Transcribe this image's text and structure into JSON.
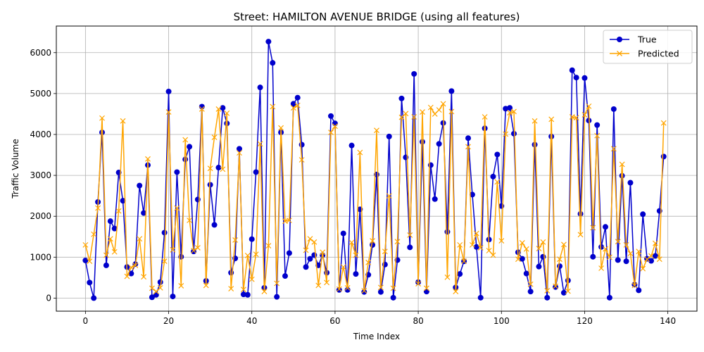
{
  "chart_data": {
    "type": "line",
    "title": "Street: HAMILTON AVENUE BRIDGE (using all features)",
    "xlabel": "Time Index",
    "ylabel": "Traffic Volume",
    "xlim": [
      -7,
      147
    ],
    "ylim": [
      -320,
      6650
    ],
    "xticks": [
      0,
      20,
      40,
      60,
      80,
      100,
      120,
      140
    ],
    "yticks": [
      0,
      1000,
      2000,
      3000,
      4000,
      5000,
      6000
    ],
    "grid": true,
    "legend_position": "top-right",
    "series": [
      {
        "name": "True",
        "color": "#0000cc",
        "marker": "circle",
        "values": [
          920,
          380,
          0,
          2350,
          4050,
          800,
          1880,
          1700,
          3070,
          2380,
          760,
          600,
          830,
          2750,
          2080,
          3250,
          20,
          80,
          390,
          1600,
          5050,
          40,
          3080,
          1010,
          3390,
          3700,
          1140,
          2410,
          4680,
          420,
          2770,
          1790,
          3190,
          4650,
          4270,
          620,
          970,
          3650,
          90,
          80,
          1440,
          3080,
          5150,
          250,
          6270,
          5750,
          30,
          4050,
          540,
          1100,
          4750,
          4900,
          3750,
          760,
          960,
          1050,
          800,
          1050,
          620,
          4450,
          4270,
          200,
          1580,
          200,
          3730,
          590,
          2170,
          150,
          570,
          1300,
          3020,
          150,
          820,
          3950,
          10,
          930,
          4880,
          3440,
          1240,
          5480,
          390,
          3820,
          160,
          3250,
          2420,
          3770,
          4280,
          1620,
          5060,
          260,
          590,
          900,
          3910,
          2530,
          1250,
          10,
          4150,
          1430,
          2970,
          3510,
          2250,
          4630,
          4650,
          4020,
          1120,
          960,
          600,
          160,
          3750,
          770,
          1010,
          10,
          3950,
          270,
          780,
          130,
          430,
          5570,
          5390,
          2060,
          5380,
          4340,
          1010,
          4230,
          1250,
          1740,
          10,
          4620,
          930,
          2990,
          900,
          2820,
          330,
          190,
          2050,
          960,
          910,
          1030,
          2130,
          3460
        ]
      },
      {
        "name": "Predicted",
        "color": "#ffa500",
        "marker": "x",
        "values": [
          1300,
          900,
          1560,
          2200,
          4400,
          1050,
          1450,
          1130,
          2130,
          4330,
          530,
          750,
          800,
          1450,
          520,
          3400,
          240,
          160,
          250,
          900,
          4550,
          1180,
          2200,
          300,
          3870,
          1900,
          1160,
          1230,
          4620,
          310,
          3170,
          3930,
          4620,
          3150,
          4520,
          230,
          1420,
          3550,
          210,
          1040,
          460,
          1070,
          3770,
          160,
          1280,
          4680,
          360,
          4160,
          1880,
          1900,
          4650,
          4710,
          3380,
          1170,
          1450,
          1370,
          310,
          1120,
          380,
          4050,
          4200,
          220,
          760,
          250,
          1360,
          1050,
          3560,
          180,
          870,
          1400,
          4100,
          260,
          1140,
          2500,
          240,
          1380,
          4420,
          4510,
          1540,
          4430,
          350,
          4550,
          240,
          4660,
          4500,
          4600,
          4750,
          510,
          4560,
          160,
          1300,
          900,
          3700,
          1300,
          1580,
          1230,
          4430,
          1160,
          1050,
          2840,
          1400,
          4010,
          4530,
          4560,
          950,
          1350,
          1200,
          340,
          4330,
          1210,
          1370,
          180,
          4370,
          290,
          950,
          1310,
          170,
          4430,
          4410,
          1550,
          4480,
          4690,
          1720,
          3970,
          730,
          1200,
          1000,
          3650,
          1380,
          3270,
          1300,
          1090,
          310,
          1140,
          720,
          950,
          1030,
          1340,
          950,
          4280
        ]
      }
    ]
  }
}
